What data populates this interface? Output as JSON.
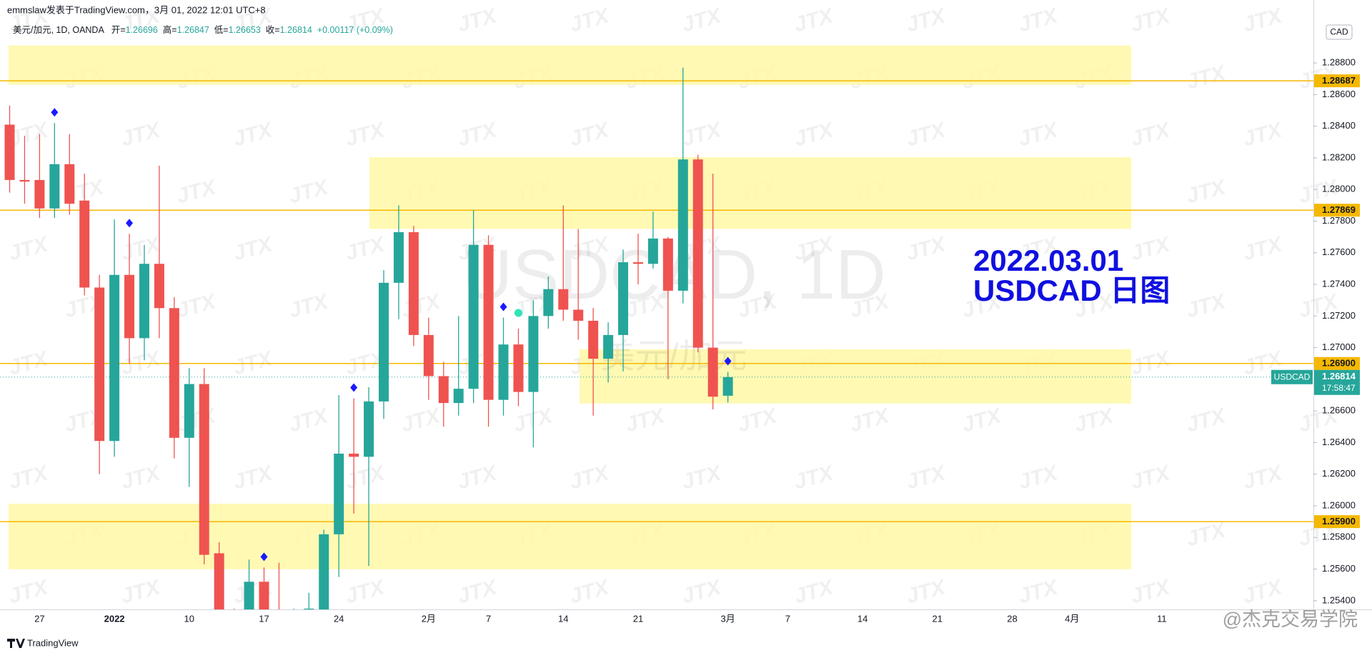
{
  "header": {
    "text": "emmslaw发表于TradingView.com，3月 01, 2022 12:01 UTC+8"
  },
  "chart_data": {
    "type": "candlestick",
    "symbol_label": "美元/加元, 1D, OANDA",
    "ohlc_labels": [
      "开=",
      "高=",
      "低=",
      "收="
    ],
    "change": "+0.00117 (+0.09%)",
    "watermark": "USDCAD, 1D",
    "watermark_sub": "美元/加元",
    "annotation": [
      "2022.03.01",
      "USDCAD 日图"
    ],
    "annotation_color": "#1010e0",
    "categories": [
      null,
      null,
      "27",
      null,
      null,
      null,
      null,
      "2022",
      null,
      null,
      null,
      null,
      "10",
      null,
      null,
      null,
      null,
      "17",
      null,
      null,
      null,
      null,
      "24",
      null,
      null,
      null,
      null,
      null,
      "2月",
      null,
      null,
      null,
      "7",
      null,
      null,
      null,
      null,
      "14",
      null,
      null,
      null,
      null,
      "21",
      null,
      null,
      null,
      null,
      null,
      "3月",
      null,
      null,
      null,
      "7",
      null,
      null,
      null,
      null,
      "14",
      null,
      null,
      null,
      null,
      "21",
      null,
      null,
      null,
      null,
      "28",
      null,
      null,
      null,
      "4月",
      null,
      null,
      null,
      null,
      null,
      "11",
      null,
      null,
      null,
      null,
      null,
      null,
      null,
      null,
      null,
      null
    ],
    "open": [
      1.2841,
      1.2806,
      1.2806,
      1.2788,
      1.2816,
      1.2793,
      1.2738,
      1.2641,
      1.2746,
      1.2706,
      1.2753,
      1.2725,
      1.2643,
      1.2677,
      1.257,
      1.253,
      1.253,
      1.2552,
      1.2525,
      1.252,
      1.253,
      1.253,
      1.2582,
      1.2633,
      1.2631,
      1.2666,
      1.2741,
      1.2773,
      1.2708,
      1.2682,
      1.2665,
      1.2674,
      1.2765,
      1.2667,
      1.2702,
      1.2672,
      1.272,
      1.2737,
      1.2724,
      1.2717,
      1.2693,
      1.2708,
      1.2754,
      1.2753,
      1.2769,
      1.2736,
      1.2819,
      1.27,
      1.26696,
      null,
      null,
      null,
      null,
      null,
      null,
      null,
      null,
      null,
      null,
      null,
      null,
      null,
      null,
      null,
      null,
      null,
      null,
      null,
      null,
      null,
      null,
      null,
      null,
      null,
      null,
      null,
      null,
      null,
      null,
      null,
      null,
      null,
      null,
      null,
      null,
      null,
      null,
      null
    ],
    "high": [
      1.2853,
      1.2834,
      1.2835,
      1.2842,
      1.2835,
      1.281,
      1.2746,
      1.2781,
      1.2772,
      1.2765,
      1.2815,
      1.2732,
      1.2687,
      1.2687,
      1.2577,
      1.2535,
      1.2566,
      1.2561,
      1.2564,
      1.2535,
      1.2545,
      1.2585,
      1.267,
      1.2668,
      1.2675,
      1.2749,
      1.279,
      1.2777,
      1.2719,
      1.2691,
      1.272,
      1.2787,
      1.2771,
      1.2719,
      1.2712,
      1.273,
      1.2745,
      1.279,
      1.2775,
      1.2725,
      1.2716,
      1.2762,
      1.2772,
      1.2786,
      1.277,
      1.2877,
      1.2822,
      1.281,
      1.26847,
      null,
      null,
      null,
      null,
      null,
      null,
      null,
      null,
      null,
      null,
      null,
      null,
      null,
      null,
      null,
      null,
      null,
      null,
      null,
      null,
      null,
      null,
      null,
      null,
      null,
      null,
      null,
      null,
      null,
      null,
      null,
      null,
      null,
      null,
      null,
      null,
      null,
      null,
      null
    ],
    "low": [
      1.2798,
      1.2791,
      1.2782,
      1.2782,
      1.2784,
      1.2733,
      1.262,
      1.2631,
      1.269,
      1.2692,
      1.2706,
      1.263,
      1.2612,
      1.2563,
      1.2531,
      1.251,
      1.2525,
      1.2515,
      1.25,
      1.2505,
      1.2515,
      1.252,
      1.2555,
      1.2595,
      1.2562,
      1.2655,
      1.2718,
      1.2701,
      1.2667,
      1.265,
      1.2657,
      1.2665,
      1.265,
      1.2657,
      1.2663,
      1.2637,
      1.2712,
      1.2717,
      1.2705,
      1.2657,
      1.2678,
      1.2685,
      1.274,
      1.275,
      1.268,
      1.2728,
      1.2697,
      1.2661,
      1.26653,
      null,
      null,
      null,
      null,
      null,
      null,
      null,
      null,
      null,
      null,
      null,
      null,
      null,
      null,
      null,
      null,
      null,
      null,
      null,
      null,
      null,
      null,
      null,
      null,
      null,
      null,
      null,
      null,
      null,
      null,
      null,
      null,
      null,
      null,
      null,
      null,
      null,
      null,
      null
    ],
    "close": [
      1.2806,
      1.2805,
      1.2788,
      1.2816,
      1.2791,
      1.2738,
      1.2641,
      1.2746,
      1.2706,
      1.2753,
      1.2725,
      1.2643,
      1.2677,
      1.2569,
      1.2533,
      1.252,
      1.2552,
      1.2528,
      1.252,
      1.253,
      1.2535,
      1.2582,
      1.2633,
      1.2631,
      1.2666,
      1.2741,
      1.2773,
      1.2708,
      1.2682,
      1.2665,
      1.2674,
      1.2765,
      1.2667,
      1.2702,
      1.2672,
      1.272,
      1.2737,
      1.2724,
      1.2717,
      1.2693,
      1.2708,
      1.2754,
      1.2753,
      1.2769,
      1.2736,
      1.2819,
      1.27,
      1.2669,
      1.26814,
      null,
      null,
      null,
      null,
      null,
      null,
      null,
      null,
      null,
      null,
      null,
      null,
      null,
      null,
      null,
      null,
      null,
      null,
      null,
      null,
      null,
      null,
      null,
      null,
      null,
      null,
      null,
      null,
      null,
      null,
      null,
      null,
      null,
      null,
      null,
      null,
      null,
      null,
      null
    ],
    "up_color": "#26a69a",
    "down_color": "#ef5350",
    "ylim": [
      1.25345,
      1.29198
    ],
    "yticks": [
      {
        "value": 1.254,
        "label": "1.25400"
      },
      {
        "value": 1.256,
        "label": "1.25600"
      },
      {
        "value": 1.258,
        "label": "1.25800"
      },
      {
        "value": 1.26,
        "label": "1.26000"
      },
      {
        "value": 1.262,
        "label": "1.26200"
      },
      {
        "value": 1.264,
        "label": "1.26400"
      },
      {
        "value": 1.266,
        "label": "1.26600"
      },
      {
        "value": 1.268,
        "label": "1.26800"
      },
      {
        "value": 1.27,
        "label": "1.27000"
      },
      {
        "value": 1.272,
        "label": "1.27200"
      },
      {
        "value": 1.274,
        "label": "1.27400"
      },
      {
        "value": 1.276,
        "label": "1.27600"
      },
      {
        "value": 1.278,
        "label": "1.27800"
      },
      {
        "value": 1.28,
        "label": "1.28000"
      },
      {
        "value": 1.282,
        "label": "1.28200"
      },
      {
        "value": 1.284,
        "label": "1.28400"
      },
      {
        "value": 1.286,
        "label": "1.28600"
      },
      {
        "value": 1.288,
        "label": "1.28800"
      }
    ],
    "grid": false,
    "axis_label": "CAD",
    "levels": [
      1.28687,
      1.27869,
      {
        "value": 1.269,
        "label": "1.26900"
      },
      {
        "value": 1.259,
        "label": "1.25900"
      }
    ],
    "level_color": "#f5b800",
    "zones": [
      [
        1.2891,
        1.28662
      ],
      [
        1.28204,
        1.27751
      ],
      [
        1.2699,
        1.26647
      ],
      [
        1.26013,
        1.25599
      ]
    ],
    "zone_color": "#fff8a6",
    "last_price": {
      "name": "USDCAD",
      "value": 1.26814,
      "countdown": "17:58:47",
      "color": "#26a69a"
    }
  },
  "footer": {
    "brand": "TradingView",
    "credit": "@杰克交易学院"
  },
  "watermark_logo": "JTX"
}
